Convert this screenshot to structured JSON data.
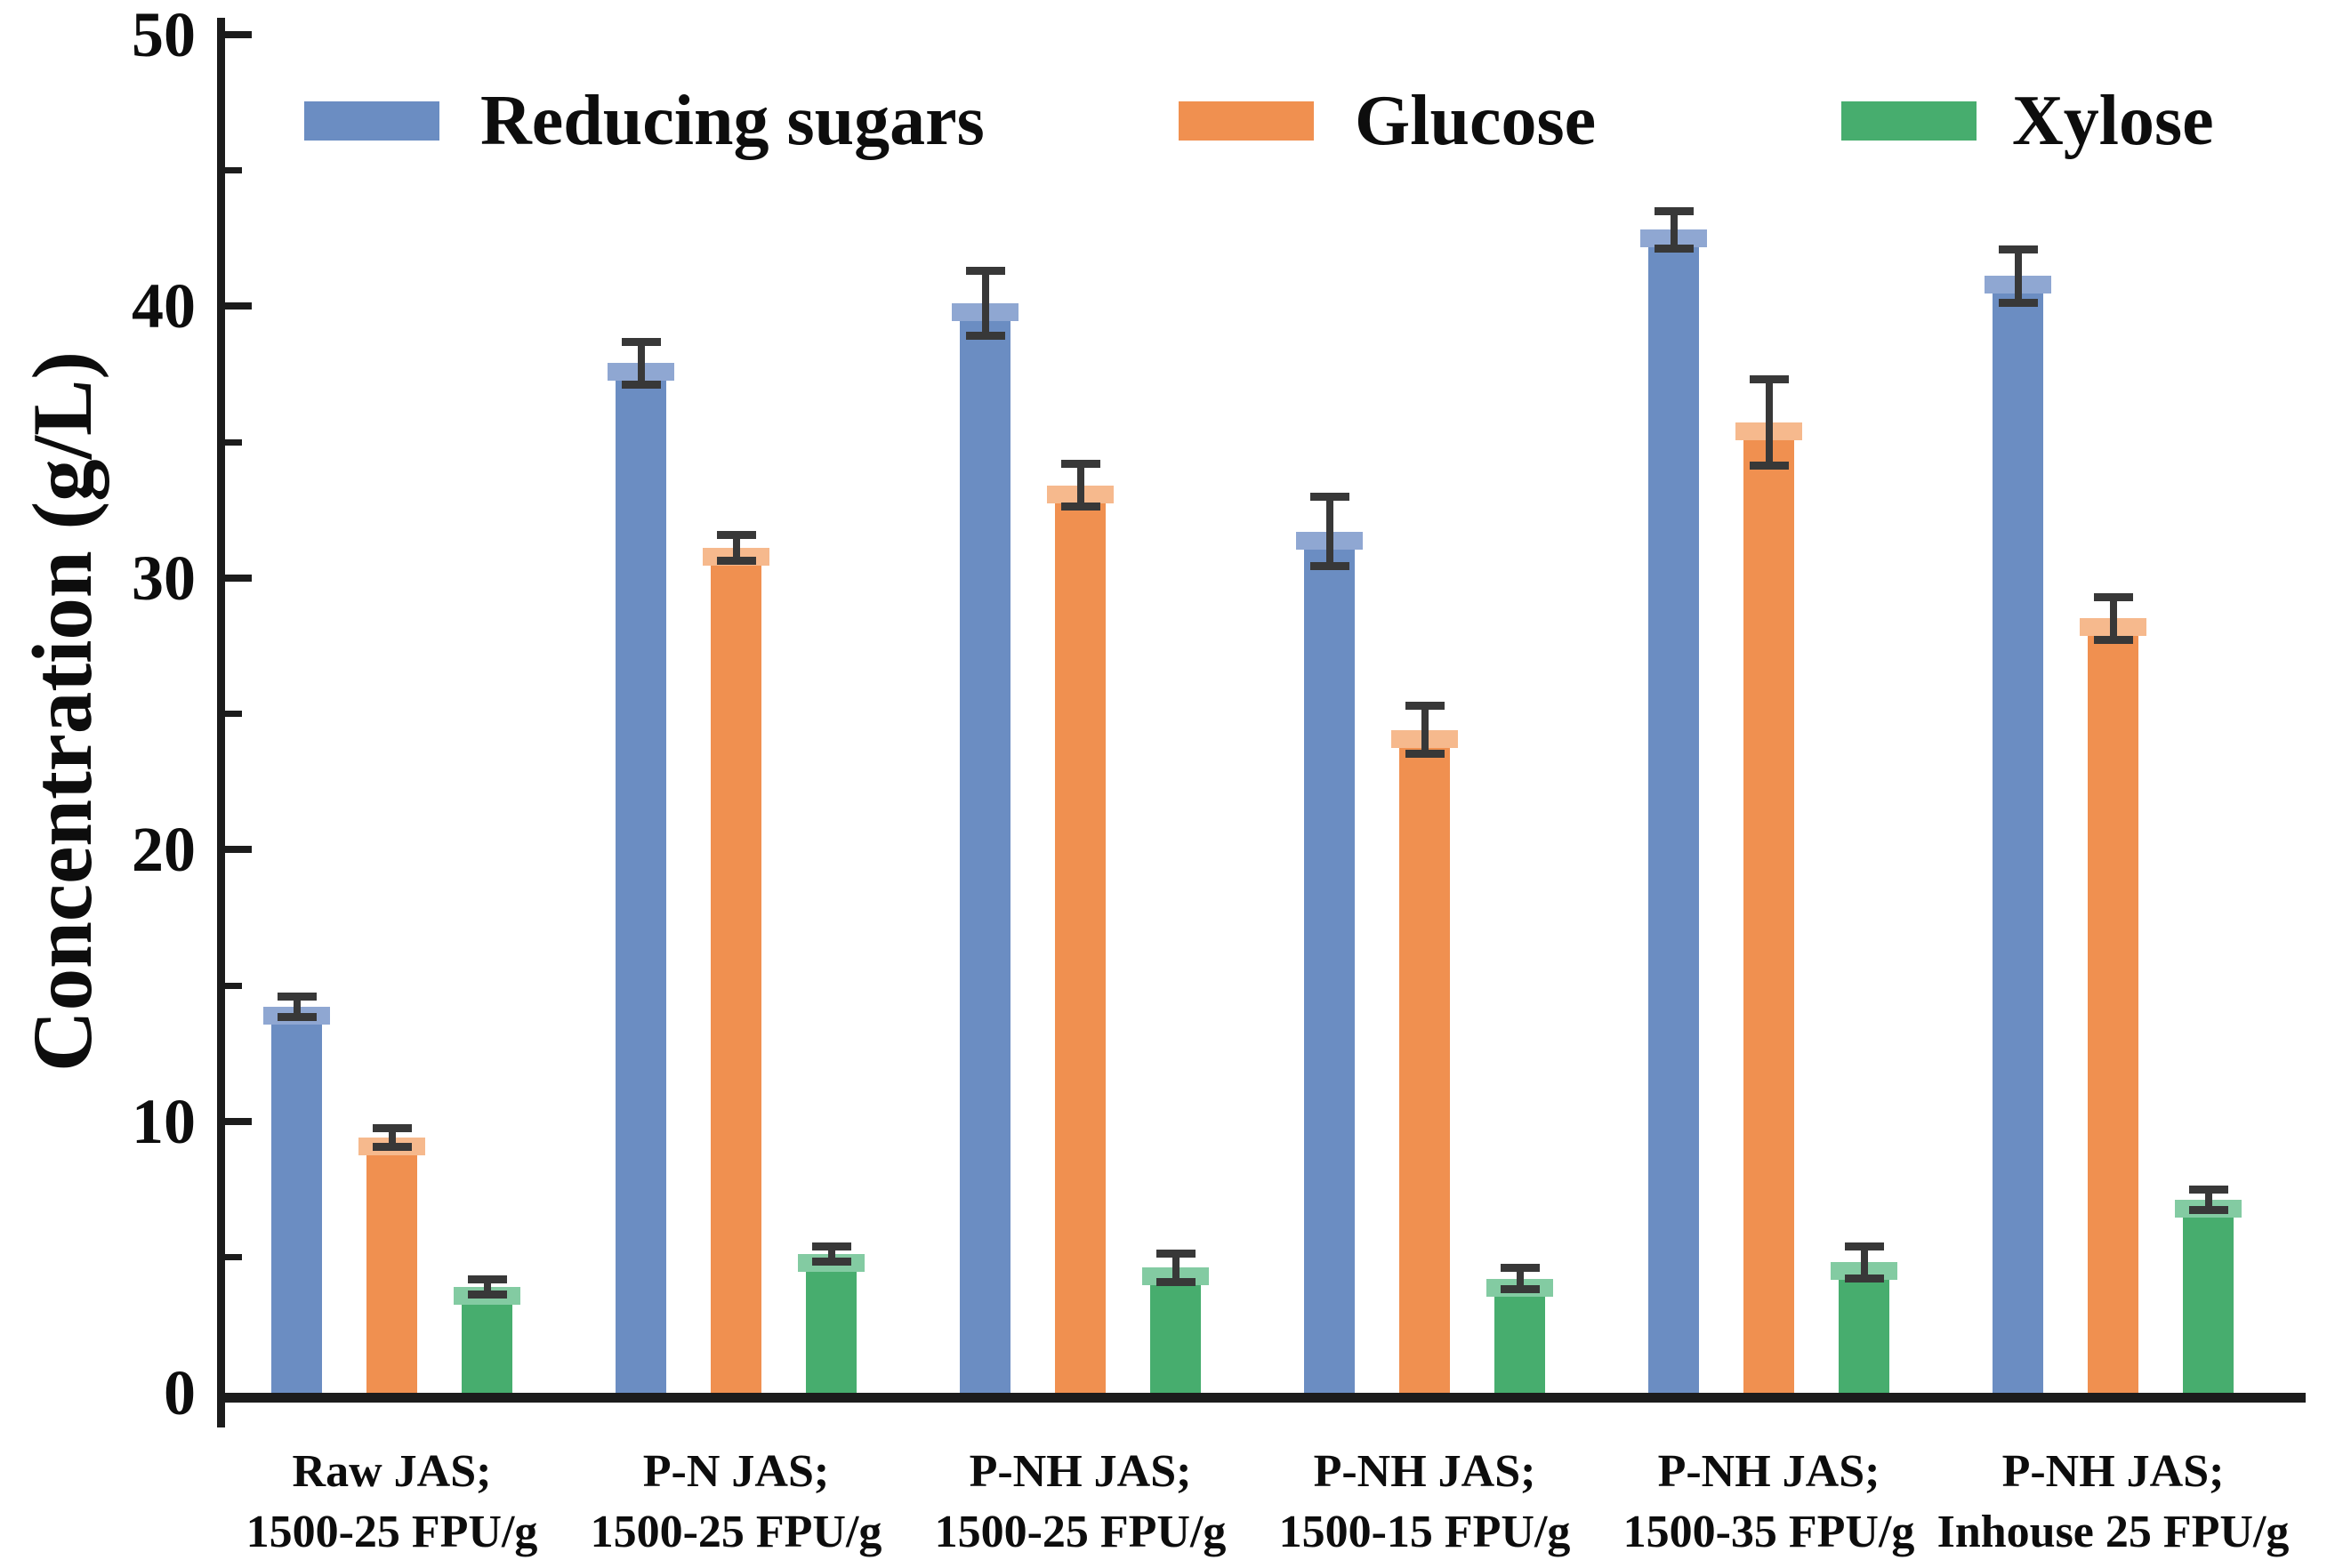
{
  "chart_data": {
    "type": "bar",
    "title": "",
    "ylabel": "Concentration (g/L)",
    "xlabel": "",
    "ylim": [
      0,
      50
    ],
    "yticks_major": [
      0,
      10,
      20,
      30,
      40,
      50
    ],
    "yticks_minor": [
      5,
      15,
      25,
      35,
      45
    ],
    "ytick_labels": [
      "0",
      "10",
      "20",
      "30",
      "40",
      "50"
    ],
    "grid": false,
    "legend_position": "top",
    "categories": [
      {
        "line1": "Raw JAS;",
        "line2": "1500-25 FPU/g"
      },
      {
        "line1": "P-N JAS;",
        "line2": "1500-25 FPU/g"
      },
      {
        "line1": "P-NH JAS;",
        "line2": "1500-25 FPU/g"
      },
      {
        "line1": "P-NH JAS;",
        "line2": "1500-15 FPU/g"
      },
      {
        "line1": "P-NH JAS;",
        "line2": "1500-35 FPU/g"
      },
      {
        "line1": "P-NH JAS;",
        "line2": "Inhouse 25 FPU/g"
      }
    ],
    "series": [
      {
        "name": "Reducing sugars",
        "color": "#6b8dc2",
        "cap_color": "#8fa7d2",
        "values": [
          14.2,
          37.9,
          40.1,
          31.7,
          42.8,
          41.1
        ],
        "errors": [
          0.4,
          0.8,
          1.2,
          1.3,
          0.7,
          1.0
        ]
      },
      {
        "name": "Glucose",
        "color": "#f09050",
        "cap_color": "#f6b98d",
        "values": [
          9.4,
          31.1,
          33.4,
          24.4,
          35.7,
          28.5
        ],
        "errors": [
          0.35,
          0.5,
          0.8,
          0.9,
          1.6,
          0.8
        ]
      },
      {
        "name": "Xylose",
        "color": "#47ad6e",
        "cap_color": "#83cba2",
        "values": [
          3.9,
          5.1,
          4.6,
          4.2,
          4.8,
          7.1
        ],
        "errors": [
          0.3,
          0.3,
          0.55,
          0.4,
          0.6,
          0.4
        ]
      }
    ],
    "colors": {
      "axis": "#1c1c1c",
      "error_bar": "#383838",
      "background": "#ffffff"
    }
  }
}
